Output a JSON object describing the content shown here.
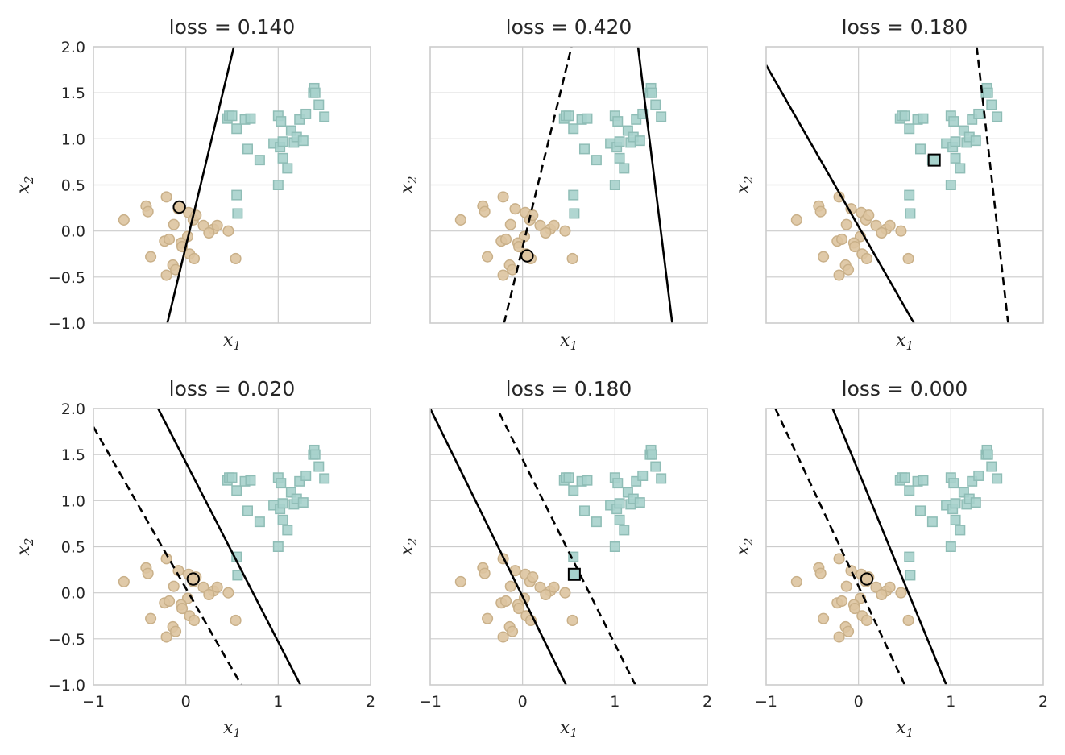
{
  "chart_data": {
    "type": "scatter",
    "layout": {
      "rows": 2,
      "cols": 3,
      "sharex": true,
      "sharey": true
    },
    "xlim": [
      -1,
      2
    ],
    "ylim": [
      -1,
      2
    ],
    "xticks": [
      "−1",
      "0",
      "1",
      "2"
    ],
    "yticks": [
      "2.0",
      "1.5",
      "1.0",
      "0.5",
      "0.0",
      "−0.5",
      "−1.0"
    ],
    "xlabel_base": "x",
    "xlabel_sub": "1",
    "ylabel_base": "x",
    "ylabel_sub": "2",
    "grid": true,
    "colors": {
      "class0_fill": "#ddc4a0",
      "class0_edge": "#c9b089",
      "class1_fill": "#a7d2cc",
      "class1_edge": "#8fbdb6",
      "line": "#000000",
      "highlight_edge": "#000000"
    },
    "class0_points": [
      [
        -0.67,
        0.12
      ],
      [
        -0.43,
        0.27
      ],
      [
        -0.41,
        0.21
      ],
      [
        -0.21,
        0.37
      ],
      [
        -0.08,
        0.24
      ],
      [
        0.03,
        0.2
      ],
      [
        0.08,
        0.12
      ],
      [
        0.11,
        0.17
      ],
      [
        -0.13,
        0.07
      ],
      [
        0.02,
        -0.06
      ],
      [
        0.19,
        0.06
      ],
      [
        0.3,
        0.02
      ],
      [
        0.34,
        0.06
      ],
      [
        0.25,
        -0.02
      ],
      [
        0.46,
        0.0
      ],
      [
        -0.23,
        -0.11
      ],
      [
        -0.18,
        -0.09
      ],
      [
        -0.38,
        -0.28
      ],
      [
        -0.05,
        -0.13
      ],
      [
        -0.04,
        -0.17
      ],
      [
        0.04,
        -0.25
      ],
      [
        0.09,
        -0.3
      ],
      [
        -0.14,
        -0.37
      ],
      [
        -0.11,
        -0.42
      ],
      [
        -0.21,
        -0.48
      ],
      [
        0.54,
        -0.3
      ]
    ],
    "class1_points": [
      [
        0.45,
        1.22
      ],
      [
        0.47,
        1.25
      ],
      [
        0.5,
        1.25
      ],
      [
        0.55,
        1.11
      ],
      [
        0.64,
        1.21
      ],
      [
        0.7,
        1.22
      ],
      [
        0.67,
        0.89
      ],
      [
        0.8,
        0.77
      ],
      [
        0.95,
        0.95
      ],
      [
        1.0,
        1.25
      ],
      [
        1.03,
        1.19
      ],
      [
        1.02,
        0.91
      ],
      [
        1.05,
        0.97
      ],
      [
        1.05,
        0.79
      ],
      [
        1.1,
        0.68
      ],
      [
        1.14,
        1.09
      ],
      [
        1.17,
        0.96
      ],
      [
        1.2,
        1.02
      ],
      [
        1.23,
        1.21
      ],
      [
        1.27,
        0.98
      ],
      [
        1.3,
        1.27
      ],
      [
        1.38,
        1.5
      ],
      [
        1.39,
        1.55
      ],
      [
        1.4,
        1.5
      ],
      [
        1.44,
        1.37
      ],
      [
        1.5,
        1.24
      ],
      [
        1.0,
        0.5
      ],
      [
        0.55,
        0.39
      ],
      [
        0.56,
        0.19
      ]
    ],
    "panels": [
      {
        "title": "loss = 0.140",
        "solid": [
          [
            -0.2,
            -1.0
          ],
          [
            0.52,
            2.0
          ]
        ],
        "dashed": null,
        "highlight": {
          "class": 0,
          "x": -0.07,
          "y": 0.26
        }
      },
      {
        "title": "loss = 0.420",
        "solid": [
          [
            1.25,
            2.0
          ],
          [
            1.62,
            -1.0
          ]
        ],
        "dashed": [
          [
            -0.2,
            -1.0
          ],
          [
            0.53,
            2.0
          ]
        ],
        "highlight": {
          "class": 0,
          "x": 0.05,
          "y": -0.27
        }
      },
      {
        "title": "loss = 0.180",
        "solid": [
          [
            -1.0,
            1.8
          ],
          [
            0.6,
            -1.0
          ]
        ],
        "dashed": [
          [
            1.28,
            2.0
          ],
          [
            1.62,
            -1.0
          ]
        ],
        "highlight": {
          "class": 1,
          "x": 0.82,
          "y": 0.77
        }
      },
      {
        "title": "loss = 0.020",
        "solid": [
          [
            -0.3,
            2.0
          ],
          [
            1.24,
            -1.0
          ]
        ],
        "dashed": [
          [
            -1.0,
            1.8
          ],
          [
            0.6,
            -1.0
          ]
        ],
        "highlight": {
          "class": 0,
          "x": 0.08,
          "y": 0.15
        }
      },
      {
        "title": "loss = 0.180",
        "solid": [
          [
            -1.0,
            2.0
          ],
          [
            0.47,
            -1.0
          ]
        ],
        "dashed": [
          [
            -0.25,
            1.95
          ],
          [
            1.22,
            -1.0
          ]
        ],
        "highlight": {
          "class": 1,
          "x": 0.56,
          "y": 0.2
        }
      },
      {
        "title": "loss = 0.000",
        "solid": [
          [
            -0.28,
            2.0
          ],
          [
            0.95,
            -1.0
          ]
        ],
        "dashed": [
          [
            -0.9,
            2.0
          ],
          [
            0.5,
            -1.0
          ]
        ],
        "highlight": {
          "class": 0,
          "x": 0.09,
          "y": 0.15
        }
      }
    ]
  }
}
